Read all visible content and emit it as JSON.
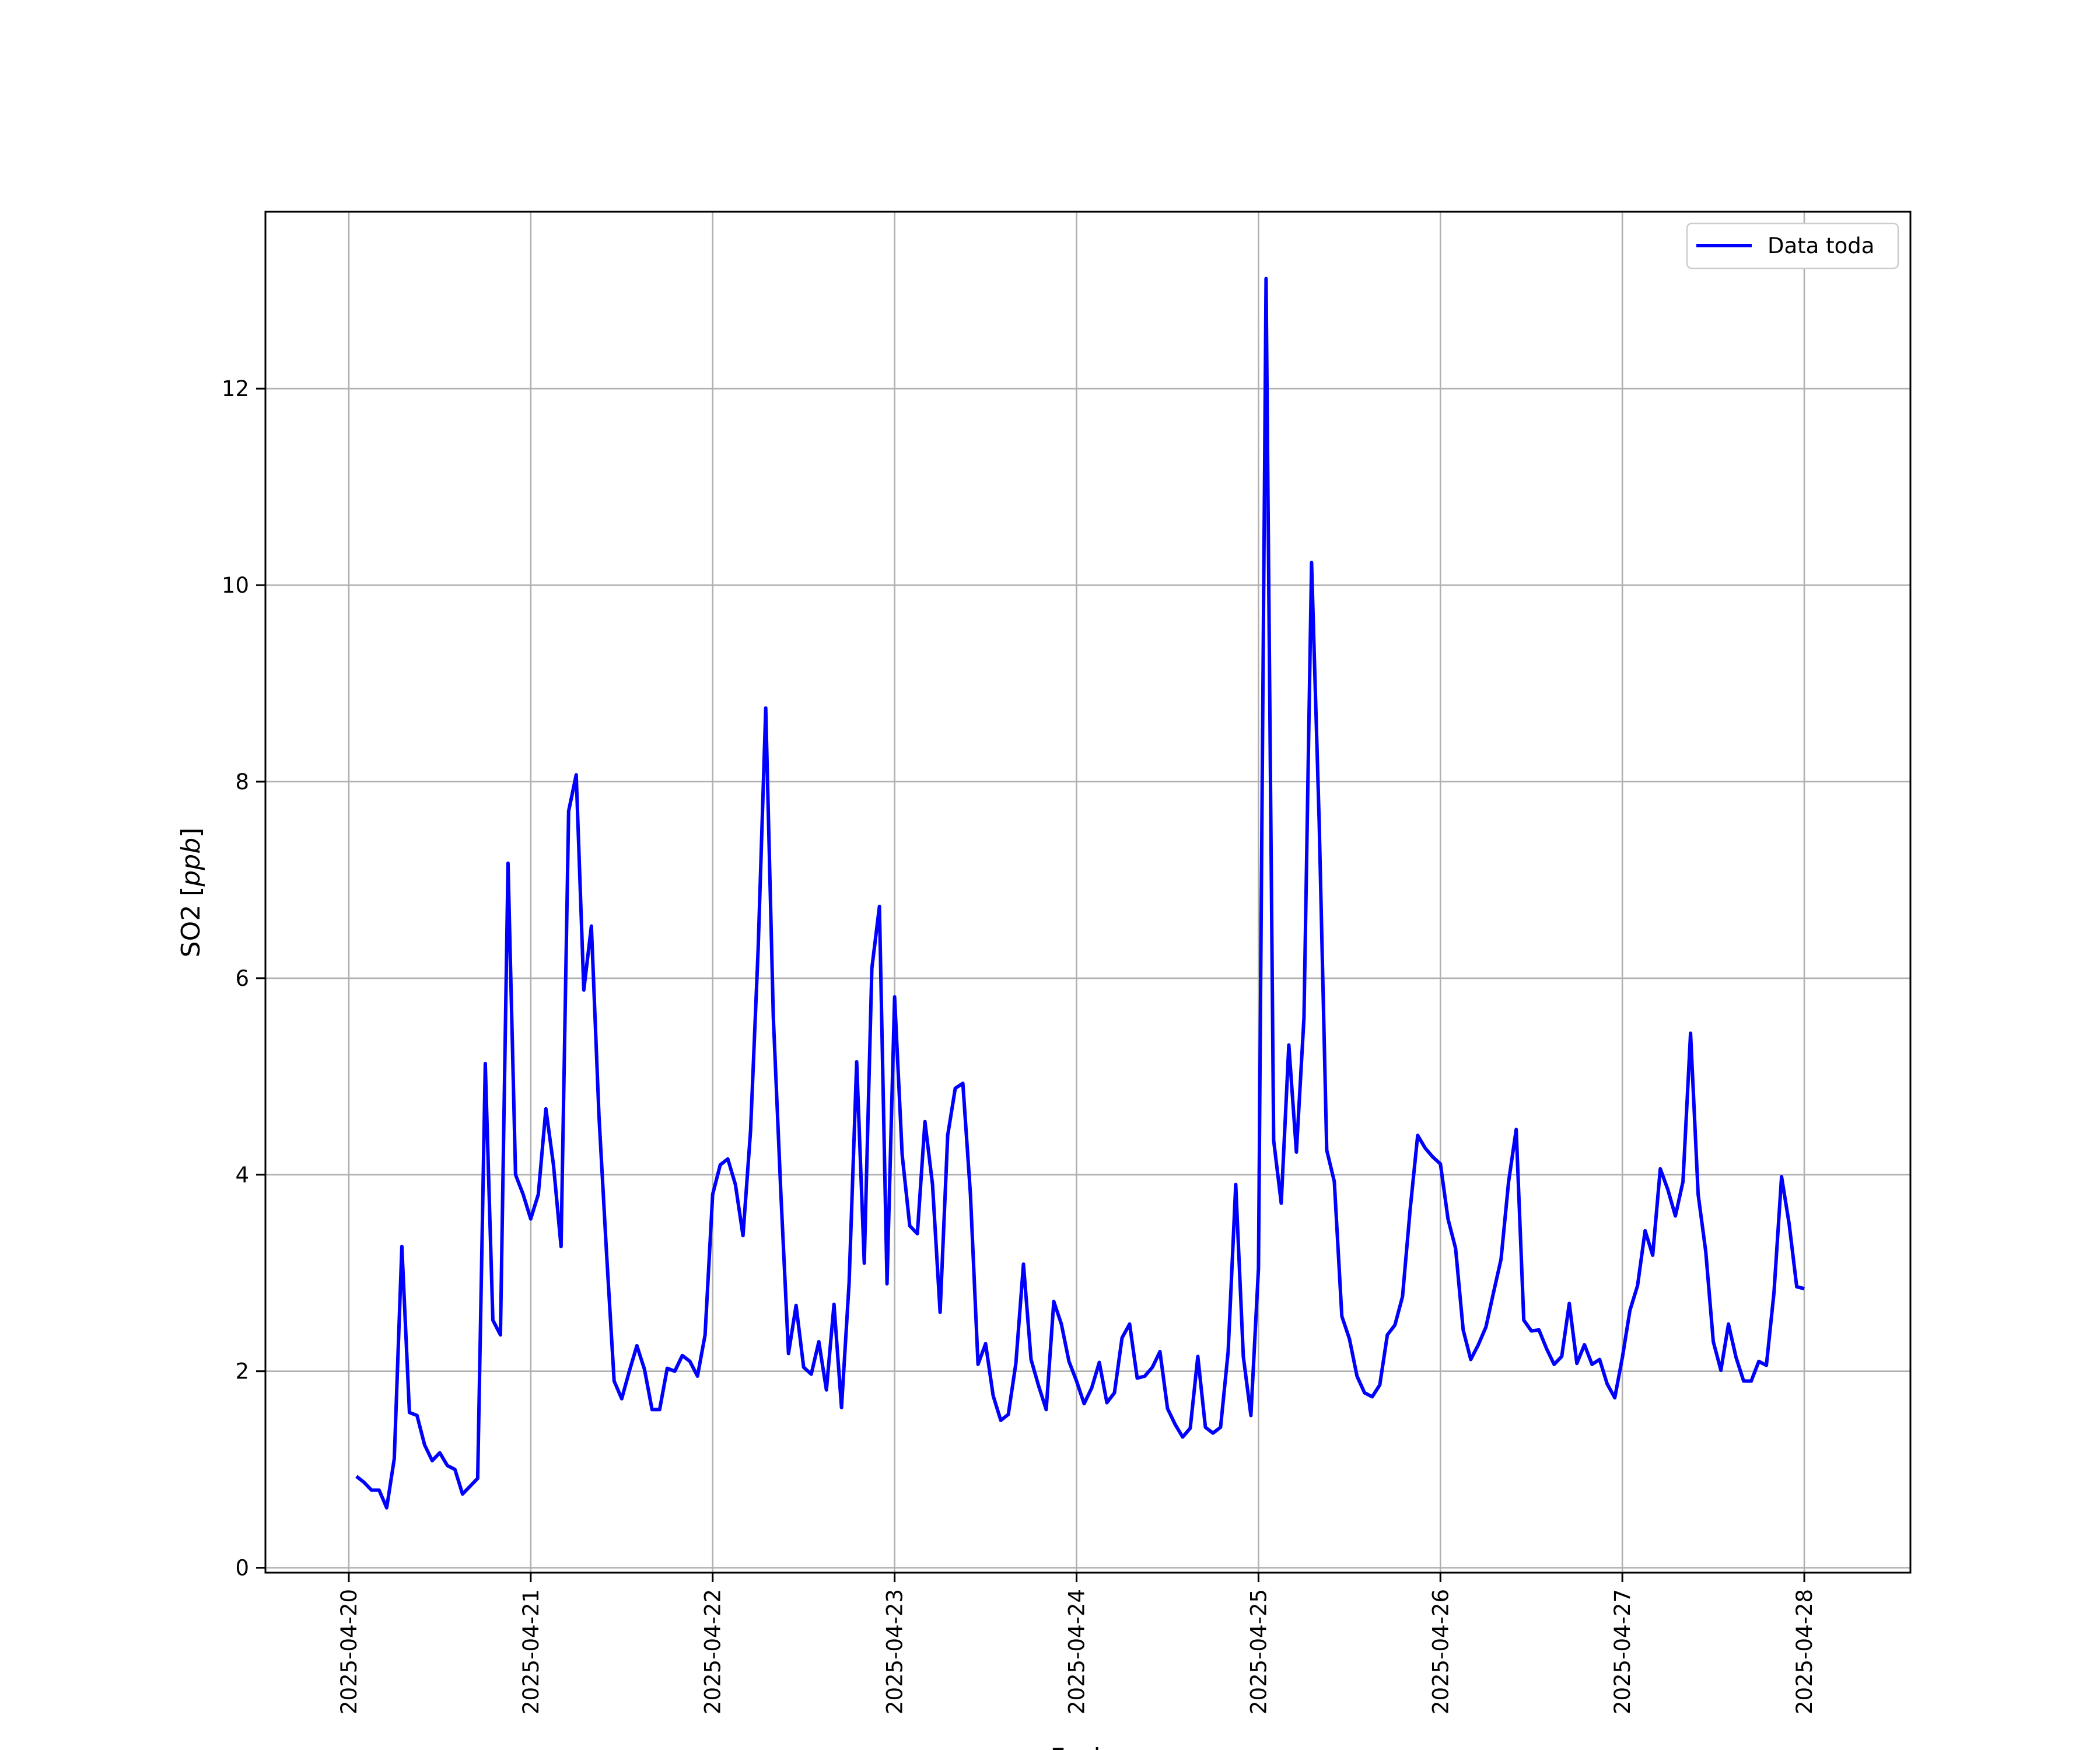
{
  "chart_data": {
    "type": "line",
    "title": "",
    "xlabel": "Fecha",
    "ylabel_prefix": "SO2 [",
    "ylabel_unit": "ppb",
    "ylabel_suffix": "]",
    "xlim": [
      "2025-04-19T13:00",
      "2025-04-28T14:00"
    ],
    "ylim": [
      -0.05,
      13.8
    ],
    "x_ticks": [
      "2025-04-20",
      "2025-04-21",
      "2025-04-22",
      "2025-04-23",
      "2025-04-24",
      "2025-04-25",
      "2025-04-26",
      "2025-04-27",
      "2025-04-28"
    ],
    "y_ticks": [
      0,
      2,
      4,
      6,
      8,
      10,
      12
    ],
    "grid": true,
    "legend_position": "top-right",
    "series": [
      {
        "name": "Data toda",
        "color": "#0000ff",
        "start": "2025-04-20T01:00",
        "step_hours": 1,
        "values": [
          0.93,
          0.87,
          0.79,
          0.79,
          0.61,
          1.11,
          3.27,
          1.58,
          1.55,
          1.25,
          1.09,
          1.17,
          1.04,
          1.0,
          0.75,
          0.83,
          0.91,
          5.13,
          2.52,
          2.37,
          7.17,
          4.0,
          3.8,
          3.55,
          3.8,
          4.67,
          4.1,
          3.27,
          7.7,
          8.07,
          5.88,
          6.53,
          4.6,
          3.2,
          1.9,
          1.72,
          2.0,
          2.26,
          2.02,
          1.61,
          1.61,
          2.03,
          2.0,
          2.16,
          2.1,
          1.95,
          2.37,
          3.8,
          4.1,
          4.16,
          3.9,
          3.38,
          4.45,
          6.3,
          8.75,
          5.6,
          3.8,
          2.18,
          2.67,
          2.04,
          1.97,
          2.3,
          1.81,
          2.68,
          1.63,
          2.9,
          5.15,
          3.1,
          6.1,
          6.73,
          2.89,
          5.81,
          4.2,
          3.48,
          3.4,
          4.54,
          3.9,
          2.6,
          4.4,
          4.88,
          4.93,
          3.8,
          2.07,
          2.28,
          1.75,
          1.5,
          1.56,
          2.08,
          3.09,
          2.12,
          1.85,
          1.61,
          2.71,
          2.48,
          2.1,
          1.9,
          1.67,
          1.83,
          2.09,
          1.68,
          1.78,
          2.34,
          2.48,
          1.93,
          1.95,
          2.04,
          2.2,
          1.62,
          1.46,
          1.33,
          1.42,
          2.15,
          1.43,
          1.37,
          1.43,
          2.2,
          3.9,
          2.15,
          1.55,
          3.05,
          13.12,
          4.35,
          3.71,
          5.32,
          4.23,
          5.6,
          10.23,
          7.6,
          4.25,
          3.93,
          2.56,
          2.33,
          1.95,
          1.78,
          1.74,
          1.86,
          2.37,
          2.47,
          2.76,
          3.64,
          4.4,
          4.27,
          4.18,
          4.11,
          3.55,
          3.25,
          2.42,
          2.12,
          2.27,
          2.45,
          2.8,
          3.14,
          3.93,
          4.46,
          2.52,
          2.41,
          2.42,
          2.23,
          2.07,
          2.15,
          2.69,
          2.08,
          2.27,
          2.07,
          2.12,
          1.87,
          1.73,
          2.14,
          2.62,
          2.87,
          3.43,
          3.18,
          4.06,
          3.85,
          3.58,
          3.93,
          5.44,
          3.8,
          3.22,
          2.3,
          2.01,
          2.48,
          2.14,
          1.9,
          1.9,
          2.1,
          2.06,
          2.8,
          3.98,
          3.5,
          2.86,
          2.84
        ]
      }
    ]
  }
}
